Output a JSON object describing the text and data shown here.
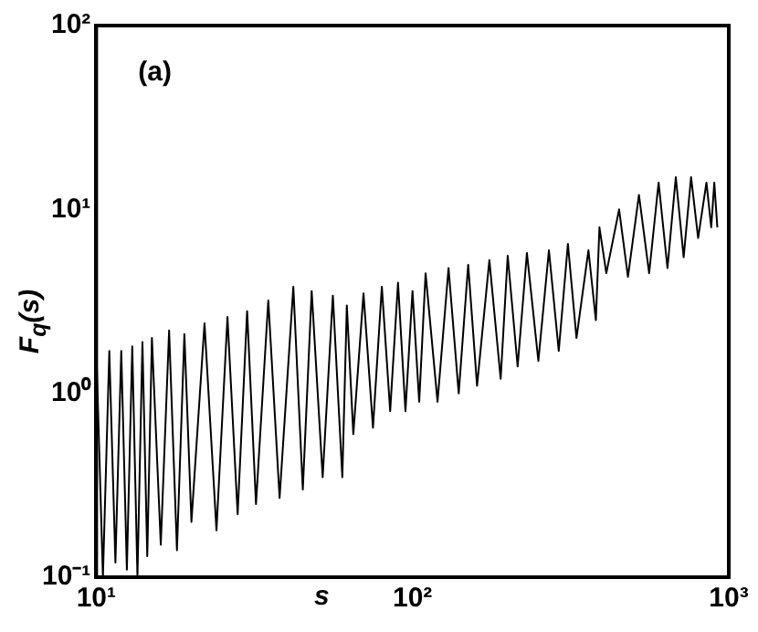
{
  "chart_data": {
    "type": "line",
    "xlabel": "s",
    "ylabel": "F$_{q}$(s)",
    "annotations": [
      "(a)"
    ],
    "log": "xy",
    "grid": false,
    "legend": false,
    "xlim": [
      10,
      1000
    ],
    "ylim": [
      0.1,
      100
    ],
    "xticks": [
      {
        "value": 10,
        "label": "10¹"
      },
      {
        "value": 100,
        "label": "10²"
      },
      {
        "value": 1000,
        "label": "10³"
      }
    ],
    "yticks": [
      {
        "value": 0.1,
        "label": "10⁻¹"
      },
      {
        "value": 1,
        "label": "10⁰"
      },
      {
        "value": 10,
        "label": "10¹"
      },
      {
        "value": 100,
        "label": "10²"
      }
    ],
    "series": [
      {
        "color": "#000000",
        "x": [
          10,
          10.5,
          11,
          11.5,
          12,
          12.5,
          13,
          13.5,
          14,
          14.5,
          15,
          16,
          17,
          18,
          19,
          20,
          22,
          24,
          26,
          28,
          30,
          32,
          35,
          38,
          42,
          45,
          48,
          52,
          56,
          60,
          62,
          65,
          70,
          75,
          80,
          85,
          90,
          95,
          100,
          105,
          110,
          120,
          130,
          140,
          150,
          160,
          175,
          190,
          200,
          215,
          230,
          250,
          270,
          290,
          310,
          330,
          360,
          380,
          390,
          410,
          450,
          480,
          520,
          560,
          600,
          640,
          680,
          720,
          760,
          800,
          850,
          880,
          900,
          920
        ],
        "values": [
          1.8,
          0.1,
          1.7,
          0.12,
          1.7,
          0.11,
          1.8,
          0.1,
          1.9,
          0.13,
          2.0,
          0.15,
          2.2,
          0.14,
          2.1,
          0.2,
          2.4,
          0.18,
          2.6,
          0.22,
          2.8,
          0.25,
          3.2,
          0.27,
          3.8,
          0.3,
          3.6,
          0.35,
          3.4,
          0.35,
          3.0,
          0.6,
          3.5,
          0.65,
          3.8,
          0.8,
          4.0,
          0.8,
          3.6,
          0.9,
          4.5,
          0.9,
          4.8,
          1.0,
          5.0,
          1.1,
          5.3,
          1.2,
          5.6,
          1.4,
          5.8,
          1.5,
          6.0,
          1.7,
          6.5,
          2.0,
          6.0,
          2.5,
          8.0,
          4.5,
          10,
          4.3,
          12,
          4.5,
          14,
          4.8,
          15,
          5.5,
          15,
          7,
          14,
          8,
          14,
          8
        ]
      }
    ]
  }
}
